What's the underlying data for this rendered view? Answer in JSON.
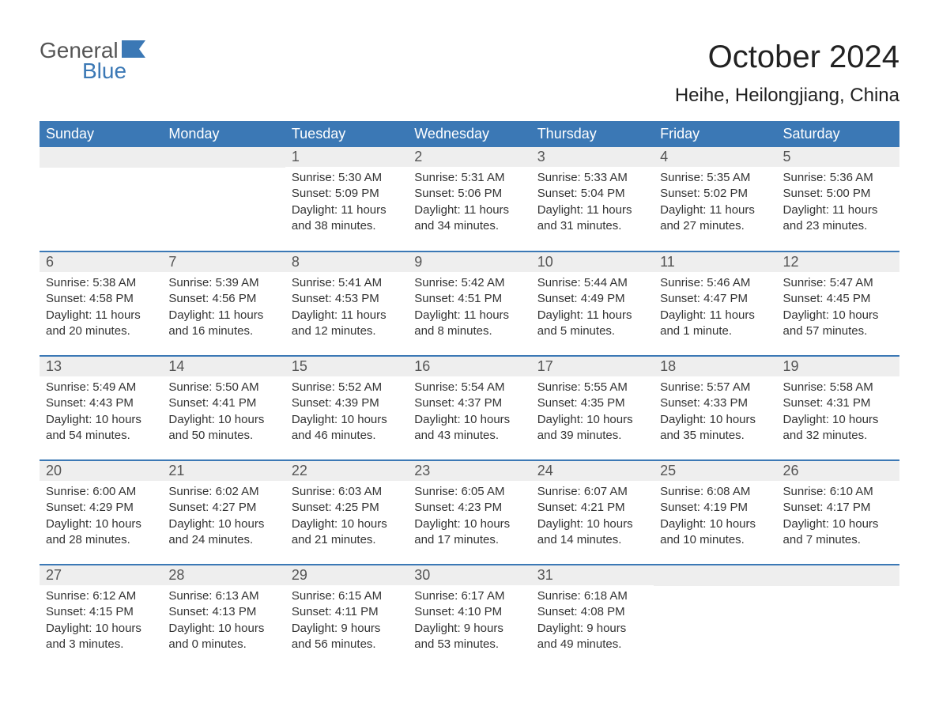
{
  "brand": {
    "general": "General",
    "blue": "Blue"
  },
  "title": "October 2024",
  "location": "Heihe, Heilongjiang, China",
  "colors": {
    "header_bg": "#3b78b5",
    "header_text": "#ffffff",
    "daynum_bg": "#eeeeee",
    "row_divider": "#3b78b5",
    "body_text": "#333333",
    "page_bg": "#ffffff"
  },
  "weekdays": [
    "Sunday",
    "Monday",
    "Tuesday",
    "Wednesday",
    "Thursday",
    "Friday",
    "Saturday"
  ],
  "weeks": [
    [
      null,
      null,
      {
        "d": "1",
        "sr": "5:30 AM",
        "ss": "5:09 PM",
        "dl": "11 hours and 38 minutes."
      },
      {
        "d": "2",
        "sr": "5:31 AM",
        "ss": "5:06 PM",
        "dl": "11 hours and 34 minutes."
      },
      {
        "d": "3",
        "sr": "5:33 AM",
        "ss": "5:04 PM",
        "dl": "11 hours and 31 minutes."
      },
      {
        "d": "4",
        "sr": "5:35 AM",
        "ss": "5:02 PM",
        "dl": "11 hours and 27 minutes."
      },
      {
        "d": "5",
        "sr": "5:36 AM",
        "ss": "5:00 PM",
        "dl": "11 hours and 23 minutes."
      }
    ],
    [
      {
        "d": "6",
        "sr": "5:38 AM",
        "ss": "4:58 PM",
        "dl": "11 hours and 20 minutes."
      },
      {
        "d": "7",
        "sr": "5:39 AM",
        "ss": "4:56 PM",
        "dl": "11 hours and 16 minutes."
      },
      {
        "d": "8",
        "sr": "5:41 AM",
        "ss": "4:53 PM",
        "dl": "11 hours and 12 minutes."
      },
      {
        "d": "9",
        "sr": "5:42 AM",
        "ss": "4:51 PM",
        "dl": "11 hours and 8 minutes."
      },
      {
        "d": "10",
        "sr": "5:44 AM",
        "ss": "4:49 PM",
        "dl": "11 hours and 5 minutes."
      },
      {
        "d": "11",
        "sr": "5:46 AM",
        "ss": "4:47 PM",
        "dl": "11 hours and 1 minute."
      },
      {
        "d": "12",
        "sr": "5:47 AM",
        "ss": "4:45 PM",
        "dl": "10 hours and 57 minutes."
      }
    ],
    [
      {
        "d": "13",
        "sr": "5:49 AM",
        "ss": "4:43 PM",
        "dl": "10 hours and 54 minutes."
      },
      {
        "d": "14",
        "sr": "5:50 AM",
        "ss": "4:41 PM",
        "dl": "10 hours and 50 minutes."
      },
      {
        "d": "15",
        "sr": "5:52 AM",
        "ss": "4:39 PM",
        "dl": "10 hours and 46 minutes."
      },
      {
        "d": "16",
        "sr": "5:54 AM",
        "ss": "4:37 PM",
        "dl": "10 hours and 43 minutes."
      },
      {
        "d": "17",
        "sr": "5:55 AM",
        "ss": "4:35 PM",
        "dl": "10 hours and 39 minutes."
      },
      {
        "d": "18",
        "sr": "5:57 AM",
        "ss": "4:33 PM",
        "dl": "10 hours and 35 minutes."
      },
      {
        "d": "19",
        "sr": "5:58 AM",
        "ss": "4:31 PM",
        "dl": "10 hours and 32 minutes."
      }
    ],
    [
      {
        "d": "20",
        "sr": "6:00 AM",
        "ss": "4:29 PM",
        "dl": "10 hours and 28 minutes."
      },
      {
        "d": "21",
        "sr": "6:02 AM",
        "ss": "4:27 PM",
        "dl": "10 hours and 24 minutes."
      },
      {
        "d": "22",
        "sr": "6:03 AM",
        "ss": "4:25 PM",
        "dl": "10 hours and 21 minutes."
      },
      {
        "d": "23",
        "sr": "6:05 AM",
        "ss": "4:23 PM",
        "dl": "10 hours and 17 minutes."
      },
      {
        "d": "24",
        "sr": "6:07 AM",
        "ss": "4:21 PM",
        "dl": "10 hours and 14 minutes."
      },
      {
        "d": "25",
        "sr": "6:08 AM",
        "ss": "4:19 PM",
        "dl": "10 hours and 10 minutes."
      },
      {
        "d": "26",
        "sr": "6:10 AM",
        "ss": "4:17 PM",
        "dl": "10 hours and 7 minutes."
      }
    ],
    [
      {
        "d": "27",
        "sr": "6:12 AM",
        "ss": "4:15 PM",
        "dl": "10 hours and 3 minutes."
      },
      {
        "d": "28",
        "sr": "6:13 AM",
        "ss": "4:13 PM",
        "dl": "10 hours and 0 minutes."
      },
      {
        "d": "29",
        "sr": "6:15 AM",
        "ss": "4:11 PM",
        "dl": "9 hours and 56 minutes."
      },
      {
        "d": "30",
        "sr": "6:17 AM",
        "ss": "4:10 PM",
        "dl": "9 hours and 53 minutes."
      },
      {
        "d": "31",
        "sr": "6:18 AM",
        "ss": "4:08 PM",
        "dl": "9 hours and 49 minutes."
      },
      null,
      null
    ]
  ],
  "labels": {
    "sunrise": "Sunrise:",
    "sunset": "Sunset:",
    "daylight": "Daylight:"
  }
}
